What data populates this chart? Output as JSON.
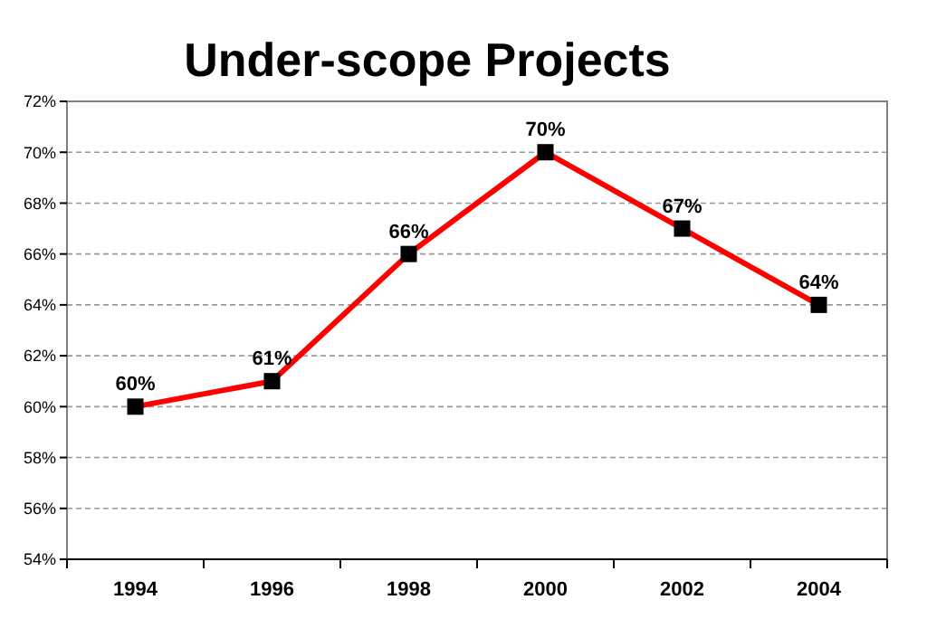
{
  "chart_data": {
    "type": "line",
    "title": "Under-scope Projects",
    "categories": [
      "1994",
      "1996",
      "1998",
      "2000",
      "2002",
      "2004"
    ],
    "series": [
      {
        "color": "#ff0000",
        "values": [
          60,
          61,
          66,
          70,
          67,
          64
        ],
        "value_labels": [
          "60%",
          "61%",
          "66%",
          "70%",
          "67%",
          "64%"
        ]
      }
    ],
    "ylim": [
      54,
      72
    ],
    "yticks": [
      {
        "value": 54,
        "label": "54%"
      },
      {
        "value": 56,
        "label": "56%"
      },
      {
        "value": 58,
        "label": "58%"
      },
      {
        "value": 60,
        "label": "60%"
      },
      {
        "value": 62,
        "label": "62%"
      },
      {
        "value": 64,
        "label": "64%"
      },
      {
        "value": 66,
        "label": "66%"
      },
      {
        "value": 68,
        "label": "68%"
      },
      {
        "value": 70,
        "label": "70%"
      },
      {
        "value": 72,
        "label": "72%"
      }
    ],
    "grid": "y",
    "marker": "square",
    "line_style": "solid"
  }
}
